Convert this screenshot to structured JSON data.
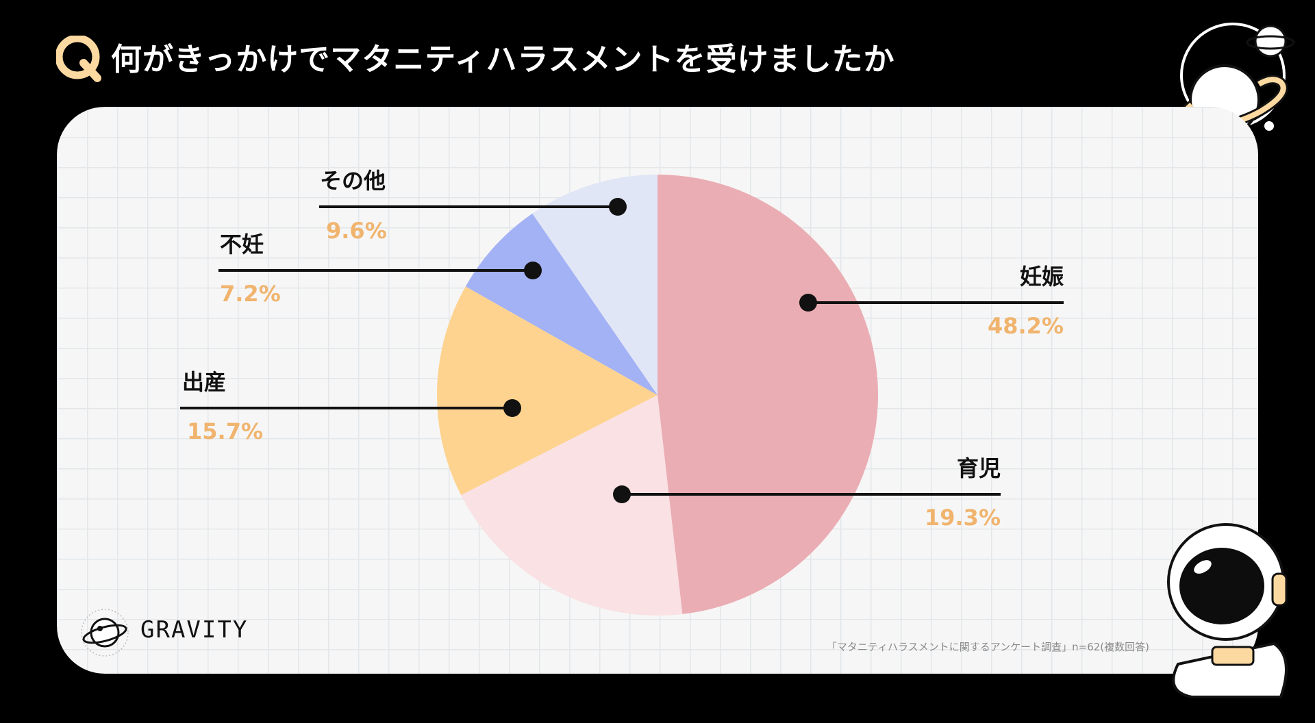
{
  "header": {
    "q_mark": "Q",
    "title": "何がきっかけでマタニティハラスメントを受けましたか"
  },
  "brand": {
    "name": "GRAVITY"
  },
  "source_note": "「マタニティハラスメントに関するアンケート調査」n=62(複数回答)",
  "colors": {
    "accent": "#f0b46e",
    "q_badge": "#fcd9a0",
    "background": "#000000",
    "card": "#f6f6f6"
  },
  "chart_data": {
    "type": "pie",
    "title": "何がきっかけでマタニティハラスメントを受けましたか",
    "start_angle_deg": 0,
    "direction": "clockwise",
    "slices": [
      {
        "label": "妊娠",
        "value": 48.2,
        "display": "48.2%",
        "color": "#eaadb3"
      },
      {
        "label": "育児",
        "value": 19.3,
        "display": "19.3%",
        "color": "#f9e1e4"
      },
      {
        "label": "出産",
        "value": 15.7,
        "display": "15.7%",
        "color": "#fed38f"
      },
      {
        "label": "不妊",
        "value": 7.2,
        "display": "7.2%",
        "color": "#a3b1f5"
      },
      {
        "label": "その他",
        "value": 9.6,
        "display": "9.6%",
        "color": "#e1e6f6"
      }
    ]
  }
}
